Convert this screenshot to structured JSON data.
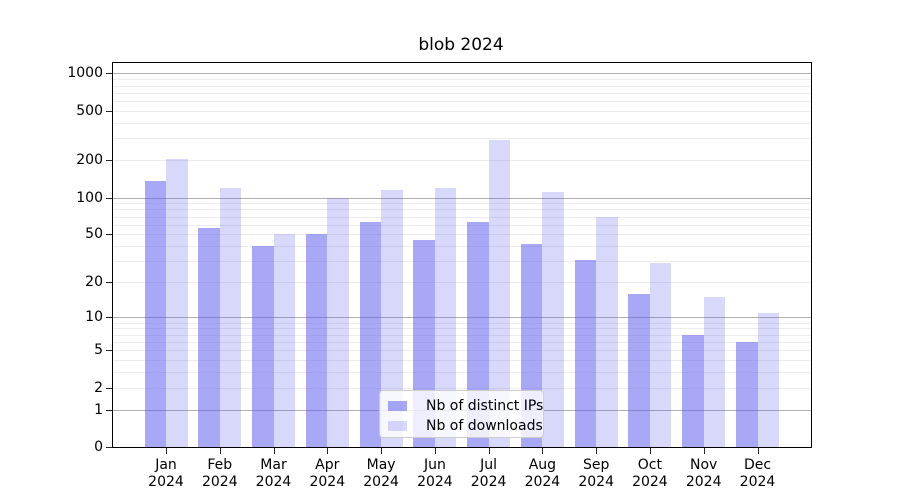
{
  "chart_data": {
    "type": "bar",
    "title": "blob 2024",
    "categories": [
      "Jan",
      "Feb",
      "Mar",
      "Apr",
      "May",
      "Jun",
      "Jul",
      "Aug",
      "Sep",
      "Oct",
      "Nov",
      "Dec"
    ],
    "year": "2024",
    "series": [
      {
        "name": "Nb of distinct IPs",
        "color": "rgba(90,90,240,0.53)",
        "values": [
          135,
          57,
          40,
          50,
          63,
          45,
          63,
          42,
          31,
          16,
          7,
          6
        ]
      },
      {
        "name": "Nb of downloads",
        "color": "rgba(90,90,240,0.235)",
        "values": [
          205,
          120,
          50,
          100,
          115,
          120,
          290,
          110,
          70,
          29,
          15,
          11
        ]
      }
    ],
    "y_ticks": [
      0,
      1,
      2,
      5,
      10,
      20,
      50,
      100,
      200,
      500,
      1000
    ],
    "scale": "log1p",
    "ylim": [
      0,
      1200
    ],
    "grid": true,
    "legend_position": "lower center"
  },
  "colors": {
    "bar_distinct_ips": "rgba(90,90,240,0.53)",
    "bar_downloads": "rgba(90,90,240,0.235)",
    "grid_major": "#b0b0b0",
    "grid_minor": "#ececec",
    "axis_frame": "#000000"
  }
}
